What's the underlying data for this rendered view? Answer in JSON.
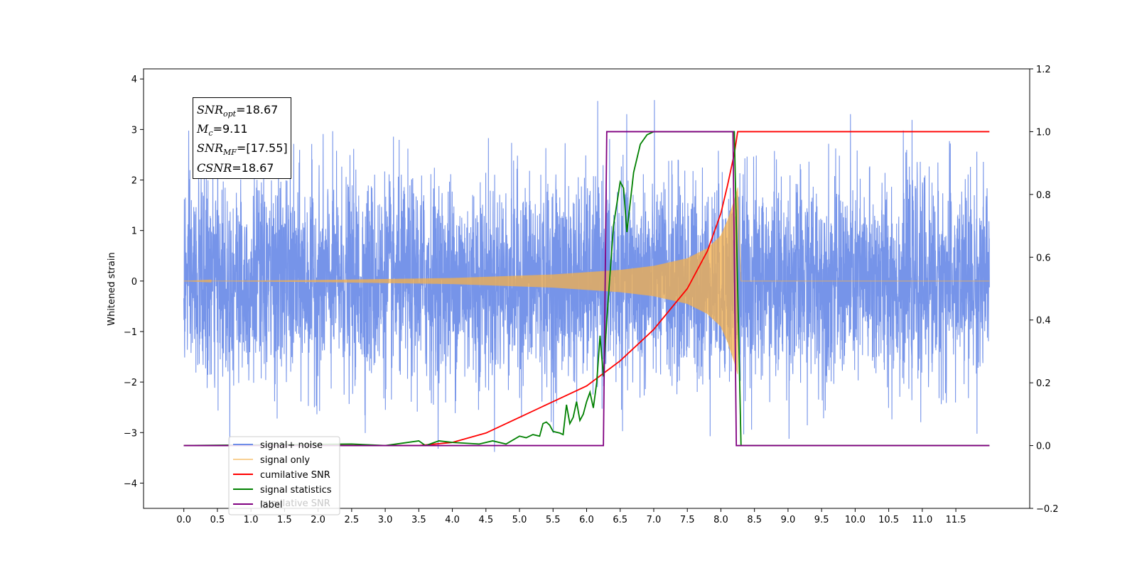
{
  "chart_data": {
    "type": "line",
    "title": "",
    "xlabel": "",
    "ylabel": "Whitened strain",
    "xlim": [
      -0.6,
      12.6
    ],
    "ylim": [
      -4.5,
      4.2
    ],
    "y2lim": [
      -0.2,
      1.2
    ],
    "x_ticks": [
      "0.0",
      "0.5",
      "1.0",
      "1.5",
      "2.0",
      "2.5",
      "3.0",
      "3.5",
      "4.0",
      "4.5",
      "5.0",
      "5.5",
      "6.0",
      "6.5",
      "7.0",
      "7.5",
      "8.0",
      "8.5",
      "9.0",
      "9.5",
      "10.0",
      "10.5",
      "11.0",
      "11.5"
    ],
    "y_ticks": [
      "4",
      "3",
      "2",
      "1",
      "0",
      "−1",
      "−2",
      "−3",
      "−4"
    ],
    "y2_ticks": [
      "1.2",
      "1.0",
      "0.8",
      "0.6",
      "0.4",
      "0.2",
      "0.0",
      "−0.2"
    ],
    "grid": false,
    "legend_position": "bottom-left",
    "signal_window": {
      "start": 0.0,
      "merger": 8.25,
      "end": 12.0
    },
    "series": [
      {
        "name": "signal+ noise",
        "axis": "left",
        "color": "#6f8ee8",
        "description": "noise with std ~1, peaks ~3.8"
      },
      {
        "name": "signal only",
        "axis": "left",
        "color": "#f5b04a",
        "envelope": {
          "x": [
            0.0,
            2.0,
            4.0,
            5.5,
            6.5,
            7.0,
            7.5,
            7.8,
            8.0,
            8.1,
            8.2,
            8.25
          ],
          "amplitude": [
            0.0,
            0.02,
            0.06,
            0.13,
            0.22,
            0.3,
            0.45,
            0.65,
            0.9,
            1.2,
            1.6,
            1.85
          ]
        }
      },
      {
        "name": "cumilative SNR",
        "axis": "right",
        "color": "#ff0000",
        "x": [
          0.0,
          3.5,
          4.0,
          4.5,
          5.0,
          5.5,
          6.0,
          6.5,
          7.0,
          7.5,
          7.8,
          8.0,
          8.1,
          8.2,
          8.25,
          12.0
        ],
        "y": [
          0.0,
          0.0,
          0.01,
          0.04,
          0.09,
          0.14,
          0.19,
          0.27,
          0.37,
          0.5,
          0.62,
          0.74,
          0.83,
          0.93,
          1.0,
          1.0
        ]
      },
      {
        "name": "signal statistics",
        "axis": "right",
        "color": "#008000",
        "x": [
          0.0,
          2.5,
          3.0,
          3.5,
          3.6,
          3.8,
          4.0,
          4.4,
          4.6,
          4.8,
          5.0,
          5.1,
          5.2,
          5.3,
          5.35,
          5.4,
          5.45,
          5.5,
          5.6,
          5.65,
          5.7,
          5.75,
          5.8,
          5.85,
          5.9,
          5.95,
          6.0,
          6.05,
          6.1,
          6.15,
          6.2,
          6.25,
          6.3,
          6.4,
          6.5,
          6.55,
          6.6,
          6.7,
          6.8,
          6.9,
          7.0,
          7.2,
          7.5,
          8.2,
          8.25,
          8.3,
          12.0
        ],
        "y": [
          0.0,
          0.005,
          0.0,
          0.015,
          0.0,
          0.015,
          0.01,
          0.005,
          0.015,
          0.005,
          0.03,
          0.025,
          0.035,
          0.03,
          0.07,
          0.075,
          0.065,
          0.045,
          0.04,
          0.035,
          0.13,
          0.07,
          0.09,
          0.14,
          0.08,
          0.1,
          0.14,
          0.17,
          0.12,
          0.2,
          0.35,
          0.22,
          0.4,
          0.7,
          0.84,
          0.82,
          0.68,
          0.87,
          0.96,
          0.99,
          1.0,
          1.0,
          1.0,
          1.0,
          0.5,
          0.0,
          0.0
        ]
      },
      {
        "name": "label",
        "axis": "right",
        "color": "#800080",
        "x": [
          0.0,
          6.25,
          6.3,
          8.18,
          8.23,
          12.0
        ],
        "y": [
          0.0,
          0.0,
          1.0,
          1.0,
          0.0,
          0.0
        ]
      }
    ],
    "legend_ghost_text": "cumilative SNR",
    "annotation": {
      "snr_opt_label": "SNR",
      "snr_opt_sub": "opt",
      "snr_opt_value": "=18.67",
      "mc_label": "M",
      "mc_sub": "c",
      "mc_value": "=9.11",
      "snr_mf_label": "SNR",
      "snr_mf_sub": "MF",
      "snr_mf_value": "=[17.55]",
      "csnr_label": "CSNR",
      "csnr_value": "=18.67"
    }
  }
}
